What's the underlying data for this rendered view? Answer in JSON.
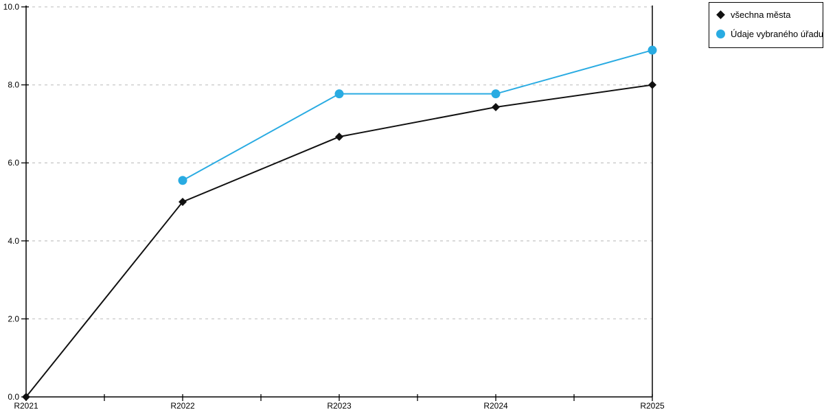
{
  "chart_data": {
    "type": "line",
    "title": "",
    "xlabel": "",
    "ylabel": "",
    "categories": [
      "R2021",
      "R2022",
      "R2023",
      "R2024",
      "R2025"
    ],
    "series": [
      {
        "name": "všechna města",
        "color": "#111111",
        "marker": "diamond",
        "values": [
          0.0,
          5.0,
          6.67,
          7.43,
          8.0
        ]
      },
      {
        "name": "Údaje vybraného úřadu",
        "color": "#29abe2",
        "marker": "circle",
        "values": [
          null,
          5.55,
          7.77,
          7.77,
          8.89
        ]
      }
    ],
    "ylim": [
      0,
      10
    ],
    "yticks": [
      {
        "value": 0,
        "label": "0.0"
      },
      {
        "value": 2,
        "label": "2.0"
      },
      {
        "value": 4,
        "label": "4.0"
      },
      {
        "value": 6,
        "label": "6.0"
      },
      {
        "value": 8,
        "label": "8.0"
      },
      {
        "value": 10,
        "label": "10.0"
      }
    ],
    "grid": "horizontal-dashed",
    "grid_color": "#c8c8c8",
    "axis_color": "#000000",
    "x_minor_ticks": true,
    "legend_position": "top-right-outside"
  }
}
